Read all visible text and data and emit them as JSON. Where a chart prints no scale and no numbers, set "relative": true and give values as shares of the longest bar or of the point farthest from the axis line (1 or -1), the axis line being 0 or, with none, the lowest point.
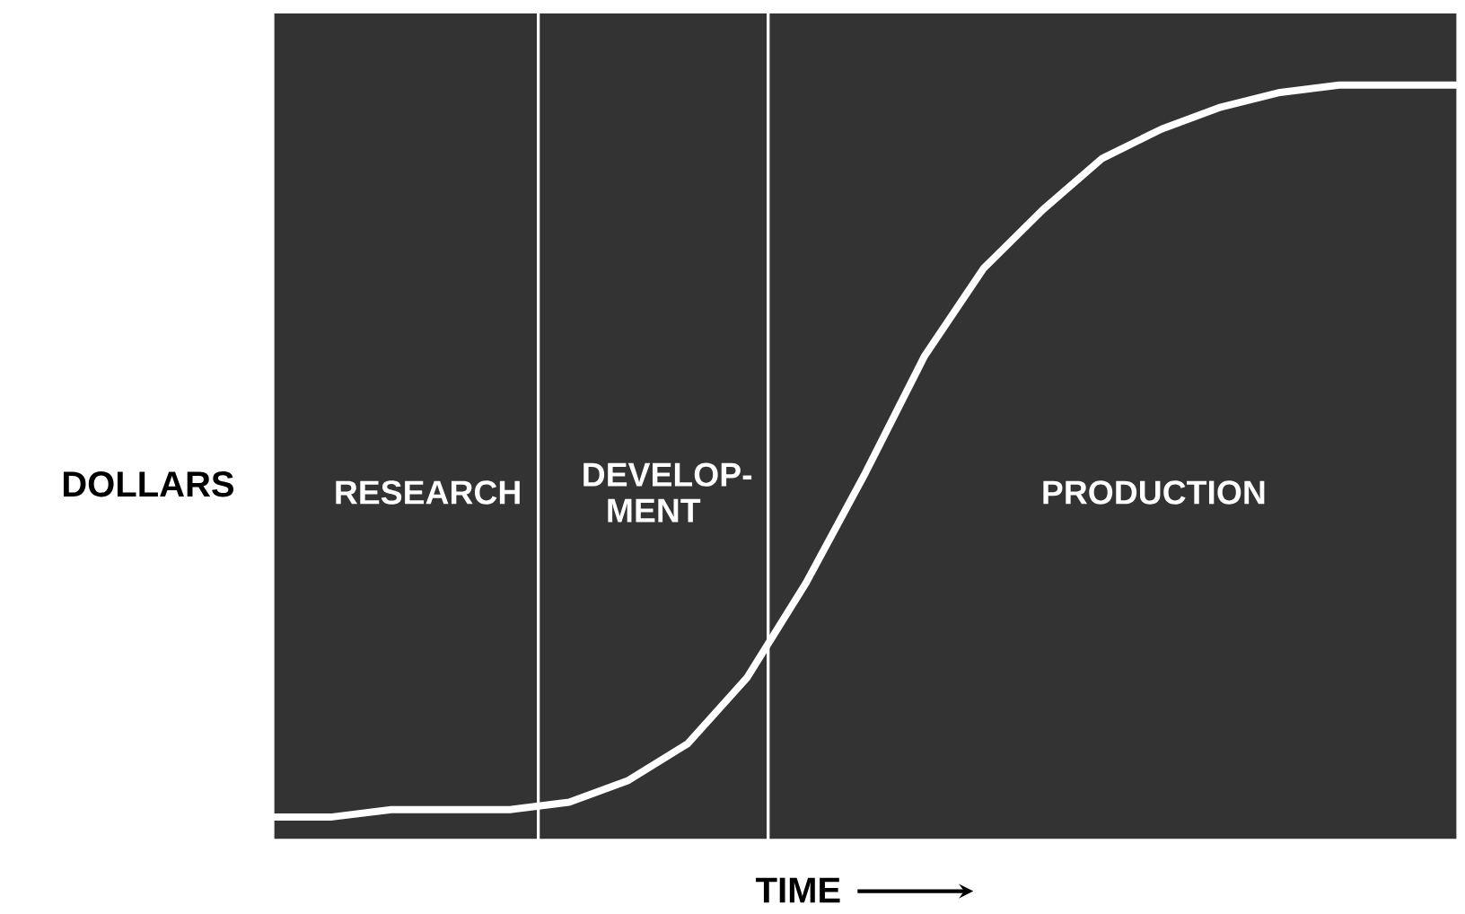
{
  "chart_data": {
    "type": "line",
    "relative": true,
    "xlabel": "TIME",
    "ylabel": "DOLLARS",
    "marker": "none",
    "line_style": "solid",
    "categories": [
      null,
      null,
      null,
      null,
      null,
      null,
      null,
      null,
      null,
      null,
      null,
      null,
      null,
      null,
      null,
      null,
      null,
      null,
      null,
      null,
      null
    ],
    "series": [
      {
        "color": "#ffffff",
        "values": [
          0,
          0,
          0.01,
          0.01,
          0.01,
          0.02,
          0.05,
          0.1,
          0.19,
          0.32,
          0.47,
          0.63,
          0.75,
          0.83,
          0.9,
          0.94,
          0.97,
          0.99,
          1,
          1,
          1
        ]
      }
    ],
    "annotations": [
      "RESEARCH",
      "DEVELOP-MENT",
      "PRODUCTION"
    ]
  }
}
